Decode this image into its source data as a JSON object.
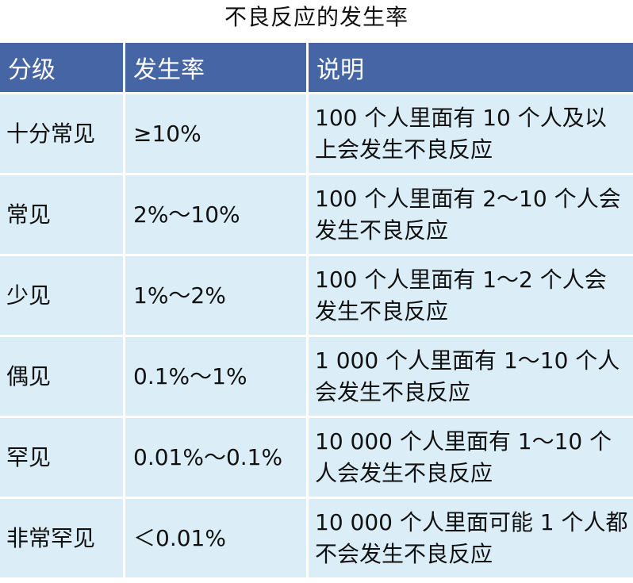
{
  "title": "不良反应的发生率",
  "table": {
    "headers": [
      "分级",
      "发生率",
      "说明"
    ],
    "rows": [
      {
        "grade": "十分常见",
        "rate": "≥10%",
        "desc": "100 个人里面有 10 个人及以上会发生不良反应"
      },
      {
        "grade": "常见",
        "rate": "2%～10%",
        "desc": "100 个人里面有 2～10 个人会发生不良反应"
      },
      {
        "grade": "少见",
        "rate": "1%～2%",
        "desc": "100 个人里面有 1～2 个人会发生不良反应"
      },
      {
        "grade": "偶见",
        "rate": "0.1%～1%",
        "desc": "1 000 个人里面有 1～10 个人会发生不良反应"
      },
      {
        "grade": "罕见",
        "rate": "0.01%～0.1%",
        "desc": "10 000 个人里面有 1～10 个人会发生不良反应"
      },
      {
        "grade": "非常罕见",
        "rate": "＜0.01%",
        "desc": "10 000 个人里面可能 1 个人都不会发生不良反应"
      }
    ]
  },
  "colors": {
    "header_bg": "#4665a4",
    "header_text": "#ffffff",
    "cell_bg": "#dbeef8",
    "text": "#111111"
  }
}
